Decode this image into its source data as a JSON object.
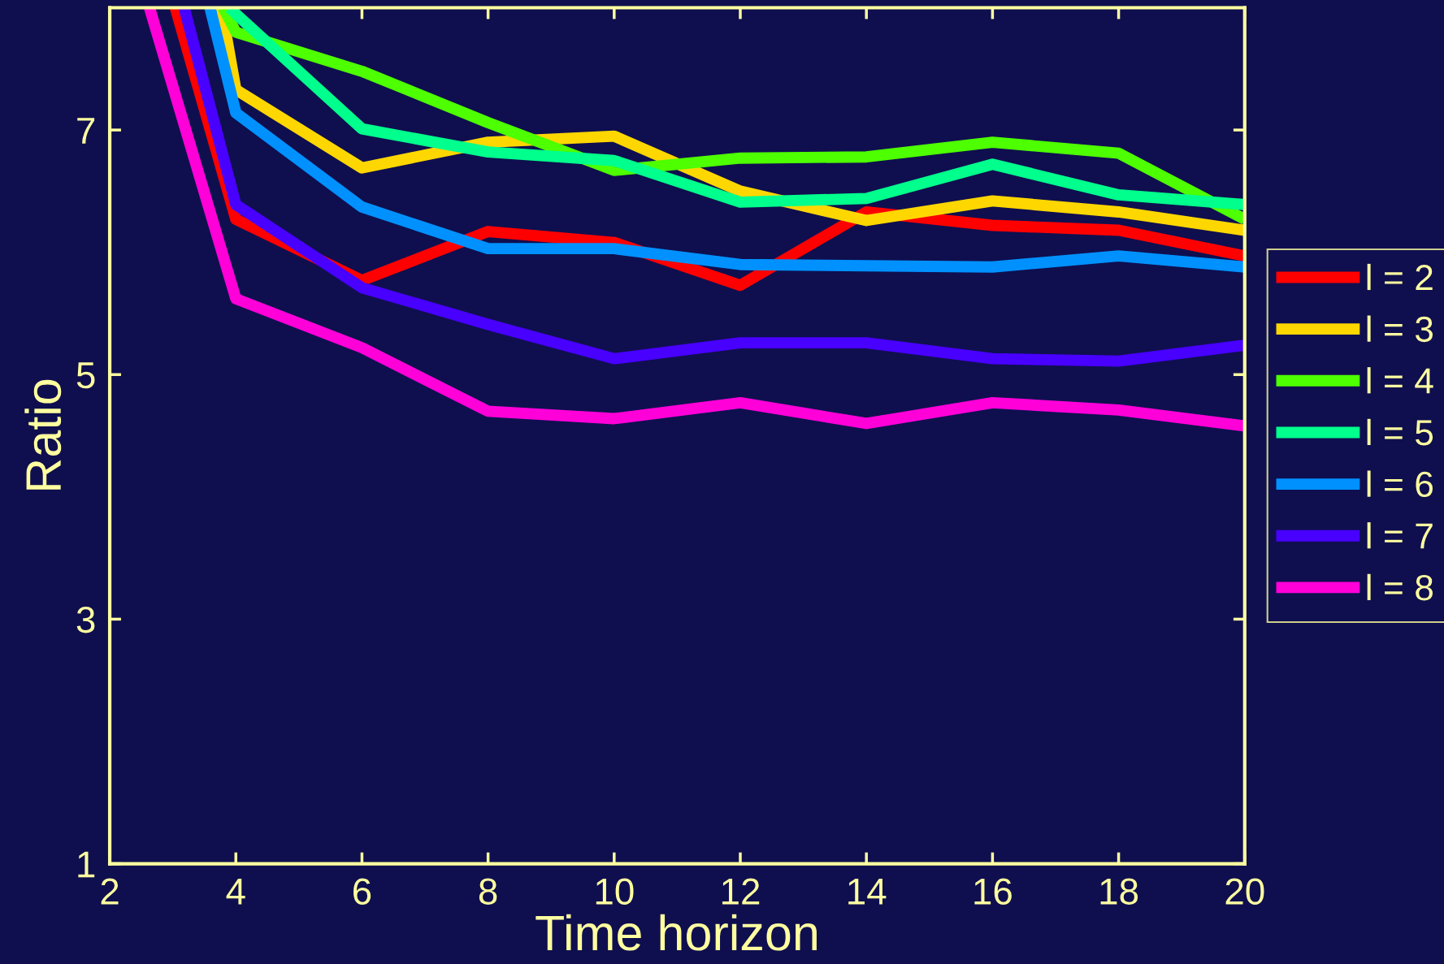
{
  "chart_data": {
    "type": "line",
    "xlabel": "Time horizon",
    "ylabel": "Ratio",
    "xlim": [
      2,
      20
    ],
    "ylim": [
      1,
      8
    ],
    "xticks": [
      2,
      4,
      6,
      8,
      10,
      12,
      14,
      16,
      18,
      20
    ],
    "yticks": [
      1,
      3,
      5,
      7
    ],
    "grid": false,
    "legend": "right",
    "marker": "none",
    "line_style": "solid",
    "series": [
      {
        "name": "l = 2",
        "color": "#ff0000",
        "x": [
          3.04,
          4,
          6,
          8,
          10,
          12,
          14,
          16,
          18,
          20
        ],
        "values": [
          8,
          6.27,
          5.77,
          6.17,
          6.08,
          5.73,
          6.33,
          6.22,
          6.18,
          5.97
        ]
      },
      {
        "name": "l = 3",
        "color": "#ffd700",
        "x": [
          3.77,
          4,
          6,
          8,
          10,
          12,
          14,
          16,
          18,
          20
        ],
        "values": [
          8,
          7.33,
          6.69,
          6.9,
          6.95,
          6.5,
          6.26,
          6.42,
          6.33,
          6.18
        ]
      },
      {
        "name": "l = 4",
        "color": "#4dff00",
        "x": [
          3.8,
          4,
          6,
          8,
          10,
          12,
          14,
          16,
          18,
          20
        ],
        "values": [
          8,
          7.8,
          7.48,
          7.06,
          6.67,
          6.77,
          6.78,
          6.9,
          6.81,
          6.27
        ]
      },
      {
        "name": "l = 5",
        "color": "#00ff8c",
        "x": [
          3.9,
          4,
          6,
          8,
          10,
          12,
          14,
          16,
          18,
          20
        ],
        "values": [
          8,
          7.95,
          7.01,
          6.82,
          6.75,
          6.41,
          6.44,
          6.72,
          6.47,
          6.39
        ]
      },
      {
        "name": "l = 6",
        "color": "#0091ff",
        "x": [
          3.59,
          4,
          6,
          8,
          10,
          12,
          14,
          16,
          18,
          20
        ],
        "values": [
          8,
          7.14,
          6.37,
          6.03,
          6.03,
          5.9,
          5.89,
          5.88,
          5.97,
          5.88
        ]
      },
      {
        "name": "l = 7",
        "color": "#4800ff",
        "x": [
          3.18,
          4,
          6,
          8,
          10,
          12,
          14,
          16,
          18,
          20
        ],
        "values": [
          8,
          6.39,
          5.71,
          5.41,
          5.13,
          5.26,
          5.26,
          5.13,
          5.11,
          5.24
        ]
      },
      {
        "name": "l = 8",
        "color": "#ff00d9",
        "x": [
          2.63,
          4,
          6,
          8,
          10,
          12,
          14,
          16,
          18,
          20
        ],
        "values": [
          8,
          5.62,
          5.22,
          4.7,
          4.64,
          4.77,
          4.6,
          4.77,
          4.71,
          4.58
        ]
      }
    ]
  }
}
